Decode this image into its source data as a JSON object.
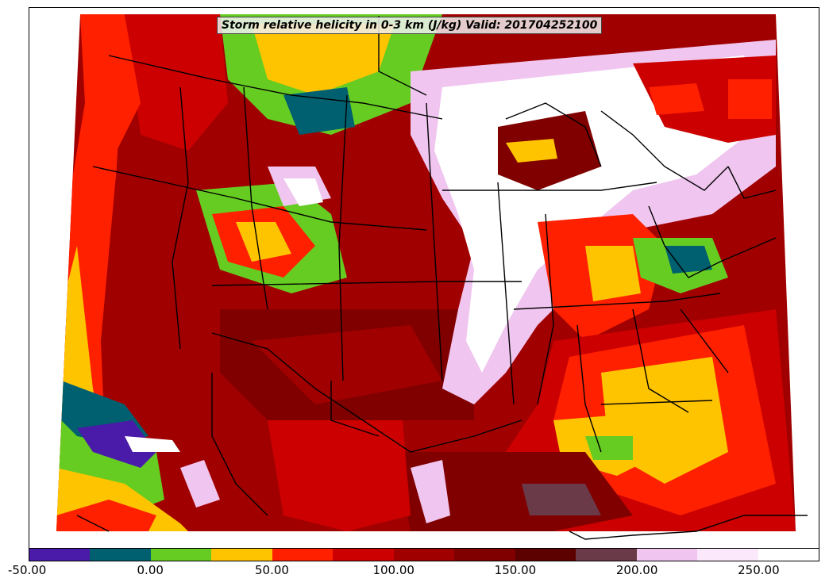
{
  "map": {
    "title": "Storm relative helicity in 0-3 km (J/kg) Valid: 201704252100",
    "background_land": "#ffffff",
    "border_color": "#000000"
  },
  "colorbar": {
    "min": -50,
    "max": 275,
    "step": 25,
    "colors": [
      "#4a1aa8",
      "#006070",
      "#66cc22",
      "#ffc400",
      "#ff2000",
      "#cc0000",
      "#a00000",
      "#800000",
      "#5c0000",
      "#6a3a48",
      "#f0c6f0",
      "#fbe8fb",
      "#ffffff"
    ],
    "tick_labels": [
      "-50.00",
      "0.00",
      "50.00",
      "100.00",
      "150.00",
      "200.00",
      "250.00"
    ],
    "tick_values": [
      -50,
      0,
      50,
      100,
      150,
      200,
      250
    ]
  }
}
